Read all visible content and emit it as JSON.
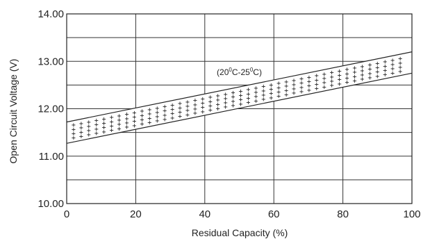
{
  "chart_data": {
    "type": "area",
    "xlabel": "Residual Capacity (%)",
    "ylabel": "Open Circuit Voltage (V)",
    "xlim": [
      0,
      100
    ],
    "ylim": [
      10.0,
      14.0
    ],
    "x_ticks": [
      "0",
      "20",
      "40",
      "60",
      "80",
      "100"
    ],
    "y_ticks": [
      "10.00",
      "11.00",
      "12.00",
      "13.00",
      "14.00"
    ],
    "grid": true,
    "series": [
      {
        "x": [
          0,
          100
        ],
        "values": [
          11.72,
          13.2
        ]
      },
      {
        "x": [
          0,
          100
        ],
        "values": [
          11.27,
          12.75
        ]
      }
    ],
    "annotation": {
      "text_parts": [
        "(20",
        "0",
        "C-25",
        "0",
        "C)"
      ],
      "x": 50,
      "y": 12.77
    },
    "fill_pattern": "+"
  }
}
